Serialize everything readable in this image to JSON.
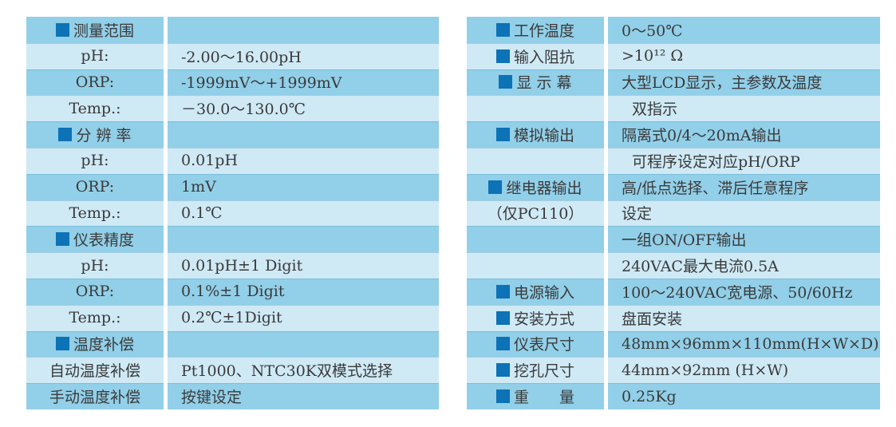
{
  "colors": {
    "background": "#ffffff",
    "row_dark": "#92cfe8",
    "row_light": "#cfe9f5",
    "bullet": "#0d72b6",
    "text": "#3a3a3a",
    "divider": "#ffffff"
  },
  "left_table": {
    "rows": [
      {
        "label": "测量范围",
        "value": "",
        "bullet": true
      },
      {
        "label": "pH:",
        "value": "-2.00～16.00pH",
        "bullet": false
      },
      {
        "label": "ORP:",
        "value": "-1999mV～+1999mV",
        "bullet": false
      },
      {
        "label": "Temp.:",
        "value": "－30.0～130.0℃",
        "bullet": false
      },
      {
        "label": "分 辨 率",
        "value": "",
        "bullet": true
      },
      {
        "label": "pH:",
        "value": "0.01pH",
        "bullet": false
      },
      {
        "label": "ORP:",
        "value": "1mV",
        "bullet": false
      },
      {
        "label": "Temp.:",
        "value": "0.1℃",
        "bullet": false
      },
      {
        "label": "仪表精度",
        "value": "",
        "bullet": true
      },
      {
        "label": "pH:",
        "value": "0.01pH±1 Digit",
        "bullet": false
      },
      {
        "label": "ORP:",
        "value": "0.1%±1 Digit",
        "bullet": false
      },
      {
        "label": "Temp.:",
        "value": "0.2℃±1Digit",
        "bullet": false
      },
      {
        "label": "温度补偿",
        "value": "",
        "bullet": true
      },
      {
        "label": "自动温度补偿",
        "value": "Pt1000、NTC30K双模式选择",
        "bullet": false
      },
      {
        "label": "手动温度补偿",
        "value": "按键设定",
        "bullet": false
      }
    ]
  },
  "right_table": {
    "rows": [
      {
        "label": "工作温度",
        "value": "0～50℃",
        "bullet": true
      },
      {
        "label": "输入阻抗",
        "value": ">10¹² Ω",
        "bullet": true
      },
      {
        "label": "显 示 幕",
        "value": "大型LCD显示，主参数及温度",
        "bullet": true
      },
      {
        "label": "",
        "value": "双指示",
        "bullet": false,
        "indent": true
      },
      {
        "label": "模拟输出",
        "value": "隔离式0/4～20mA输出",
        "bullet": true
      },
      {
        "label": "",
        "value": "可程序设定对应pH/ORP",
        "bullet": false,
        "indent": true
      },
      {
        "label": "继电器输出",
        "value": "高/低点选择、滞后任意程序",
        "bullet": true
      },
      {
        "label": "（仅PC110）",
        "value": "设定",
        "bullet": false
      },
      {
        "label": "",
        "value": "一组ON/OFF输出",
        "bullet": false
      },
      {
        "label": "",
        "value": "240VAC最大电流0.5A",
        "bullet": false
      },
      {
        "label": "电源输入",
        "value": "100～240VAC宽电源、50/60Hz",
        "bullet": true
      },
      {
        "label": "安装方式",
        "value": "盘面安装",
        "bullet": true
      },
      {
        "label": "仪表尺寸",
        "value": "48mm×96mm×110mm(H×W×D)",
        "bullet": true
      },
      {
        "label": "挖孔尺寸",
        "value": "44mm×92mm (H×W)",
        "bullet": true
      },
      {
        "label": "重　　量",
        "value": "0.25Kg",
        "bullet": true
      }
    ]
  }
}
